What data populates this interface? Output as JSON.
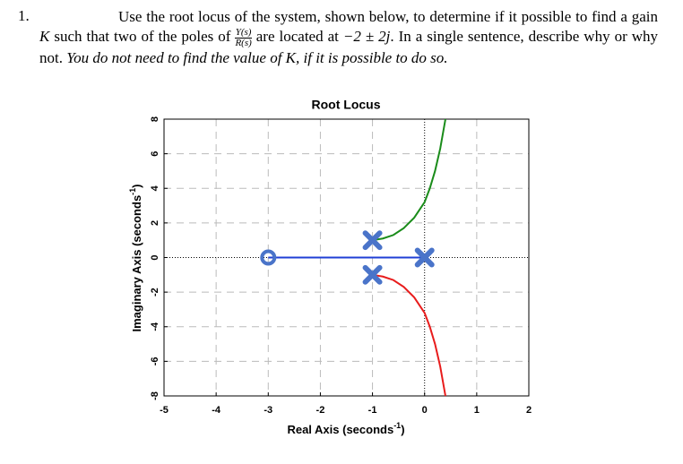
{
  "question": {
    "number": "1.",
    "parts": [
      "Use the root locus of the system, shown below, to determine if it possible to find a gain",
      "K",
      "such that two of the poles of",
      "are located at",
      "−2 ± 2j",
      ". In a single sentence, describe why or why not."
    ],
    "fraction": {
      "numerator": "Y(s)",
      "denominator": "R(s)"
    },
    "note": "You do not need to find the value of K, if it is possible to do so."
  },
  "chart_data": {
    "type": "root-locus",
    "title": "Root Locus",
    "xlabel": [
      "Real Axis (seconds",
      "-1",
      ")"
    ],
    "ylabel": [
      "Imaginary Axis (seconds",
      "-1",
      ")"
    ],
    "xlim": [
      -5,
      2
    ],
    "ylim": [
      -8,
      8
    ],
    "xticks": [
      -5,
      -4,
      -3,
      -2,
      -1,
      0,
      1,
      2
    ],
    "yticks": [
      -8,
      -6,
      -4,
      -2,
      0,
      2,
      4,
      6,
      8
    ],
    "grid": true,
    "series": [
      {
        "color": "#1f3fd6",
        "x": [
          0,
          -3
        ],
        "y": [
          0,
          0
        ]
      },
      {
        "color": "#1a8c1a",
        "x": [
          -1,
          -0.8,
          -0.6,
          -0.4,
          -0.2,
          0,
          0.1,
          0.2,
          0.3,
          0.4
        ],
        "y": [
          1,
          1.1,
          1.3,
          1.7,
          2.3,
          3.2,
          4,
          5,
          6.3,
          8
        ]
      },
      {
        "color": "#e81c1c",
        "x": [
          -1,
          -0.8,
          -0.6,
          -0.4,
          -0.2,
          0,
          0.1,
          0.2,
          0.3,
          0.4
        ],
        "y": [
          -1,
          -1.1,
          -1.3,
          -1.7,
          -2.3,
          -3.2,
          -4,
          -5,
          -6.3,
          -8
        ]
      }
    ],
    "poles": {
      "x": [
        -1,
        -1,
        0
      ],
      "y": [
        1,
        -1,
        0
      ]
    },
    "zeros": {
      "x": [
        -3
      ],
      "y": [
        0
      ]
    },
    "marker_color": "#4a74c9"
  }
}
